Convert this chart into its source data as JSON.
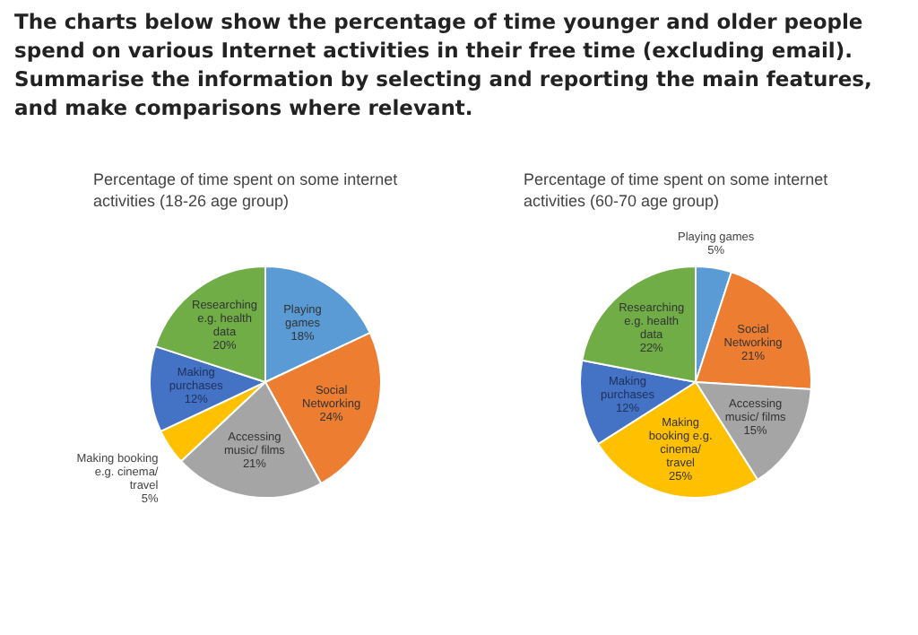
{
  "chart_data": [
    {
      "type": "pie",
      "title": "Percentage of time spent on some internet activities (18-26 age group)",
      "annotations": [
        "The charts below show the percentage of time younger and older people spend on various Internet activities in their free time (excluding email). Summarise the information by selecting and reporting the main features, and make comparisons where relevant."
      ],
      "categories": [
        "Playing games",
        "Social Networking",
        "Accessing music/ films",
        "Making booking e.g. cinema/ travel",
        "Making purchases",
        "Researching e.g. health data"
      ],
      "values": [
        18,
        24,
        21,
        5,
        12,
        20
      ],
      "value_labels": [
        "18%",
        "24%",
        "21%",
        "5%",
        "12%",
        "20%"
      ],
      "colors": [
        "#5b9bd5",
        "#ed7d31",
        "#a5a5a5",
        "#ffc000",
        "#4472c4",
        "#70ad47"
      ],
      "legend": false
    },
    {
      "type": "pie",
      "title": "Percentage of time spent on some internet activities (60-70 age group)",
      "categories": [
        "Playing games",
        "Social Networking",
        "Accessing music/ films",
        "Making booking e.g. cinema/ travel",
        "Making purchases",
        "Researching e.g. health data"
      ],
      "values": [
        5,
        21,
        15,
        25,
        12,
        22
      ],
      "value_labels": [
        "5%",
        "21%",
        "15%",
        "25%",
        "12%",
        "22%"
      ],
      "colors": [
        "#5b9bd5",
        "#ed7d31",
        "#a5a5a5",
        "#ffc000",
        "#4472c4",
        "#70ad47"
      ],
      "legend": false
    }
  ]
}
